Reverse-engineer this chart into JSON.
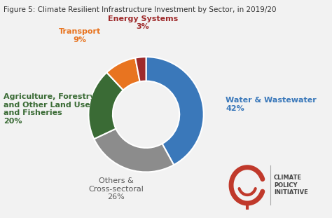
{
  "title": "Figure 5: Climate Resilient Infrastructure Investment by Sector, in 2019/20",
  "values": [
    42,
    26,
    20,
    9,
    3
  ],
  "colors": [
    "#3a78ba",
    "#8c8c8c",
    "#3a6b35",
    "#e87420",
    "#9e2a2b"
  ],
  "background_color": "#f2f2f2",
  "title_fontsize": 7.5,
  "label_fontsize": 8.0,
  "labels": [
    {
      "text": "Water & Wastewater\n42%",
      "color": "#3a78ba",
      "fontweight": "bold"
    },
    {
      "text": "Others &\nCross-sectoral\n26%",
      "color": "#595959",
      "fontweight": "normal"
    },
    {
      "text": "Agriculture, Forestry\nand Other Land Uses\nand Fisheries\n20%",
      "color": "#3a6b35",
      "fontweight": "bold"
    },
    {
      "text": "Transport\n9%",
      "color": "#e87420",
      "fontweight": "bold"
    },
    {
      "text": "Energy Systems\n3%",
      "color": "#9e2a2b",
      "fontweight": "bold"
    }
  ],
  "cpi_text": "CLIMATE\nPOLICY\nINITIATIVE",
  "cpi_text_color": "#444444",
  "cpi_logo_color": "#c0392b"
}
